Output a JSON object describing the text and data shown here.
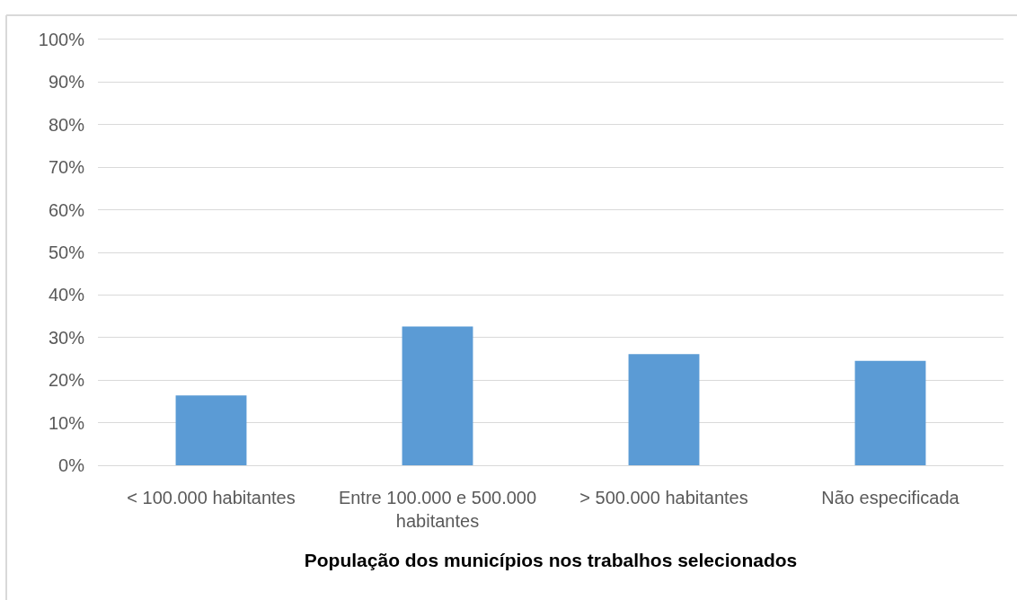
{
  "chart_data": {
    "type": "bar",
    "xlabel": "População dos municípios nos trabalhos selecionados",
    "categories": [
      "< 100.000 habitantes",
      "Entre 100.000 e 500.000 habitantes",
      "> 500.000 habitantes",
      "Não especificada"
    ],
    "values": [
      16.4,
      32.6,
      26.1,
      24.5
    ],
    "color": "#5b9bd5",
    "ylim": [
      0,
      100
    ],
    "yticks": [
      {
        "value": 0,
        "label": "0%"
      },
      {
        "value": 10,
        "label": "10%"
      },
      {
        "value": 20,
        "label": "20%"
      },
      {
        "value": 30,
        "label": "30%"
      },
      {
        "value": 40,
        "label": "40%"
      },
      {
        "value": 50,
        "label": "50%"
      },
      {
        "value": 60,
        "label": "60%"
      },
      {
        "value": 70,
        "label": "70%"
      },
      {
        "value": 80,
        "label": "80%"
      },
      {
        "value": 90,
        "label": "90%"
      },
      {
        "value": 100,
        "label": "100%"
      }
    ],
    "grid": "y"
  }
}
